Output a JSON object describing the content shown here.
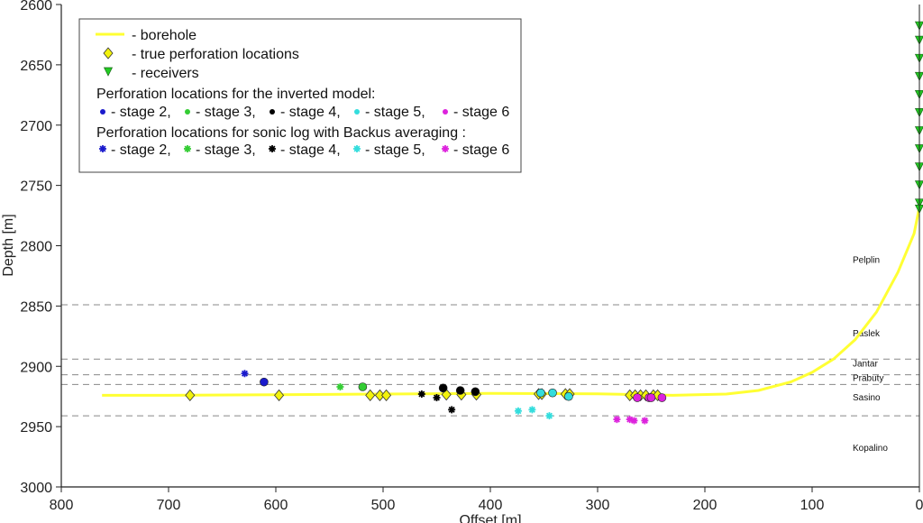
{
  "chart_data": {
    "type": "scatter",
    "xlabel": "Offset [m]",
    "ylabel": "Depth [m]",
    "xlim": [
      800,
      0
    ],
    "ylim": [
      2600,
      3000
    ],
    "x_ticks": [
      "800",
      "700",
      "600",
      "500",
      "400",
      "300",
      "200",
      "100",
      "0"
    ],
    "y_ticks": [
      "2600",
      "2650",
      "2700",
      "2750",
      "2800",
      "2850",
      "2900",
      "2950",
      "3000"
    ],
    "y_tick_labels": [
      "2600",
      "2650",
      "2700",
      "2750",
      "2800",
      "2850",
      "2900",
      "2950",
      "3000"
    ],
    "grid": false,
    "legend_position": "top-left",
    "legend": {
      "borehole": "- borehole",
      "true_perf": "- true perforation locations",
      "receivers": "- receivers",
      "inverted_title": "Perforation locations for the inverted model:",
      "sonic_title": "Perforation locations for sonic log with Backus averaging :",
      "stage_labels": [
        "- stage 2,",
        "- stage 3,",
        "- stage 4,",
        "- stage 5,",
        "- stage 6"
      ]
    },
    "colors": {
      "borehole": "#ffff33",
      "diamond": "#f2f20d",
      "receiver": "#22cc22",
      "stage2": "#1a1acc",
      "stage3": "#33cc33",
      "stage4": "#000000",
      "stage5": "#33dddd",
      "stage6": "#dd22dd"
    },
    "formations": [
      {
        "name": "Pelplin",
        "depth": 2812
      },
      {
        "name": "Paslek",
        "depth": 2873
      },
      {
        "name": "Jantar",
        "depth": 2898
      },
      {
        "name": "Prabuty",
        "depth": 2910
      },
      {
        "name": "Sasino",
        "depth": 2926
      },
      {
        "name": "Kopalino",
        "depth": 2968
      }
    ],
    "boundaries": [
      2849,
      2894,
      2907,
      2915,
      2941
    ],
    "borehole": {
      "x": [
        762,
        700,
        600,
        500,
        400,
        300,
        230,
        180,
        150,
        120,
        100,
        80,
        60,
        40,
        20,
        5,
        0
      ],
      "y": [
        2924,
        2924,
        2923.5,
        2923,
        2922.5,
        2922.8,
        2924,
        2923,
        2920,
        2913,
        2905,
        2894,
        2878,
        2855,
        2822,
        2790,
        2768
      ]
    },
    "receivers": {
      "x": [
        0,
        0,
        0,
        0,
        0,
        0,
        0,
        0,
        0,
        0,
        0,
        0
      ],
      "y": [
        2618,
        2630,
        2645,
        2660,
        2675,
        2690,
        2705,
        2720,
        2735,
        2750,
        2765,
        2770
      ]
    },
    "true_perforations": {
      "x": [
        680,
        597,
        512,
        503,
        497,
        441,
        427,
        413,
        355,
        352,
        330,
        326,
        270,
        265,
        260,
        255,
        248,
        244
      ],
      "y": [
        2924,
        2924,
        2924,
        2924,
        2924,
        2923.5,
        2923.5,
        2923.5,
        2923,
        2923,
        2923,
        2923,
        2924,
        2924,
        2924,
        2924,
        2924,
        2924
      ]
    },
    "inverted_model": [
      {
        "stage": "stage 2",
        "x": [
          611
        ],
        "y": [
          2913
        ]
      },
      {
        "stage": "stage 3",
        "x": [
          519
        ],
        "y": [
          2917
        ]
      },
      {
        "stage": "stage 4",
        "x": [
          444,
          428,
          414
        ],
        "y": [
          2918,
          2920,
          2921
        ]
      },
      {
        "stage": "stage 5",
        "x": [
          353,
          342,
          327
        ],
        "y": [
          2922,
          2922,
          2925
        ]
      },
      {
        "stage": "stage 6",
        "x": [
          263,
          252,
          250,
          240
        ],
        "y": [
          2926,
          2926,
          2926,
          2926
        ]
      }
    ],
    "sonic_backus": [
      {
        "stage": "stage 2",
        "x": [
          629
        ],
        "y": [
          2906
        ]
      },
      {
        "stage": "stage 3",
        "x": [
          540
        ],
        "y": [
          2917
        ]
      },
      {
        "stage": "stage 4",
        "x": [
          464,
          450,
          436
        ],
        "y": [
          2923,
          2926,
          2936
        ]
      },
      {
        "stage": "stage 5",
        "x": [
          374,
          361,
          345
        ],
        "y": [
          2937,
          2936,
          2941
        ]
      },
      {
        "stage": "stage 6",
        "x": [
          282,
          270,
          266,
          256
        ],
        "y": [
          2944,
          2944,
          2945,
          2945
        ]
      }
    ]
  }
}
